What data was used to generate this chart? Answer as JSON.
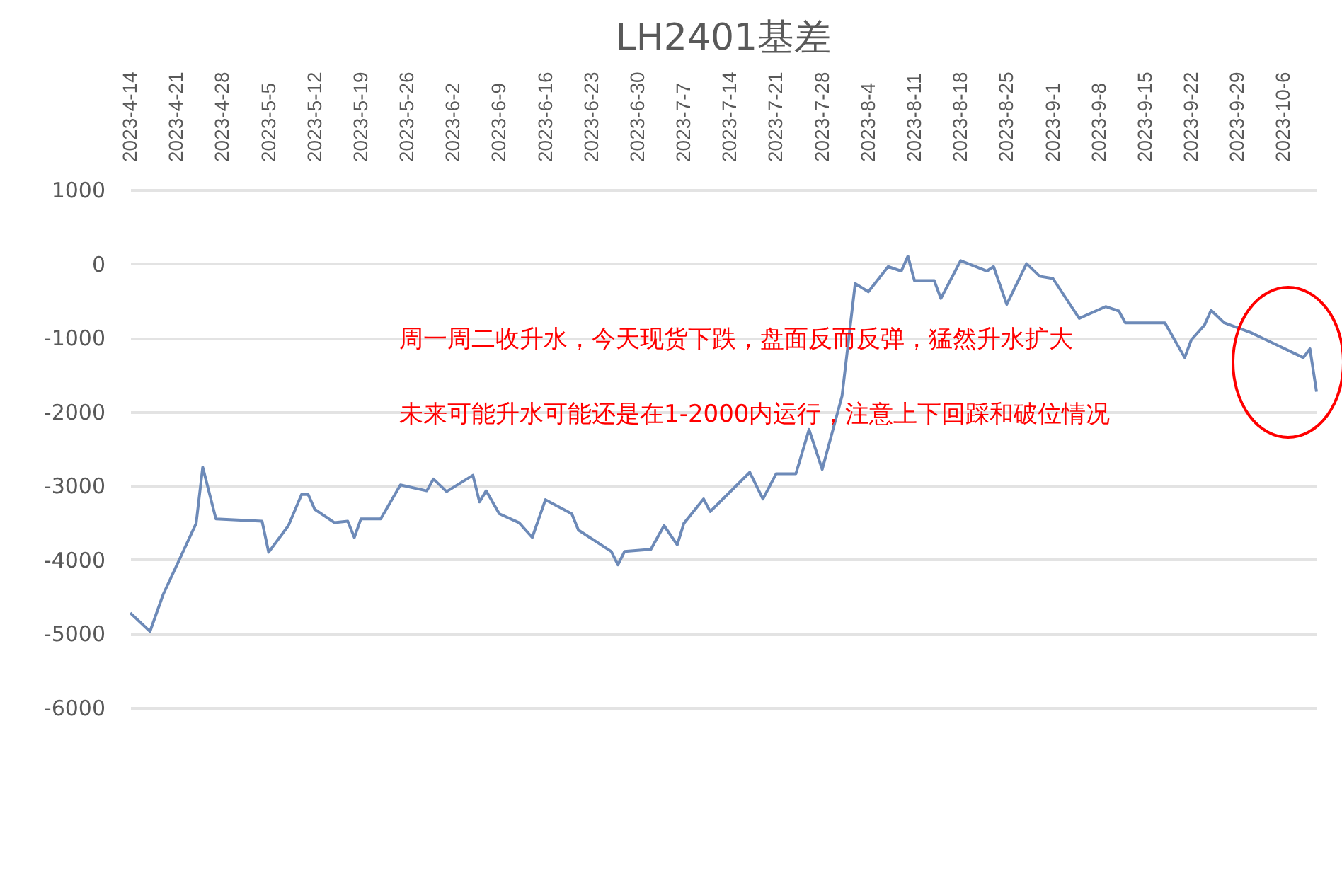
{
  "chart_data": {
    "type": "line",
    "title": "LH2401基差",
    "x": [
      "2023-04-14",
      "2023-04-17",
      "2023-04-19",
      "2023-04-24",
      "2023-04-25",
      "2023-04-27",
      "2023-05-04",
      "2023-05-05",
      "2023-05-08",
      "2023-05-10",
      "2023-05-11",
      "2023-05-12",
      "2023-05-15",
      "2023-05-17",
      "2023-05-18",
      "2023-05-19",
      "2023-05-22",
      "2023-05-25",
      "2023-05-29",
      "2023-05-30",
      "2023-06-01",
      "2023-06-05",
      "2023-06-06",
      "2023-06-07",
      "2023-06-09",
      "2023-06-12",
      "2023-06-14",
      "2023-06-16",
      "2023-06-20",
      "2023-06-21",
      "2023-06-26",
      "2023-06-27",
      "2023-06-28",
      "2023-07-02",
      "2023-07-04",
      "2023-07-06",
      "2023-07-07",
      "2023-07-10",
      "2023-07-11",
      "2023-07-17",
      "2023-07-19",
      "2023-07-21",
      "2023-07-24",
      "2023-07-26",
      "2023-07-28",
      "2023-07-31",
      "2023-08-02",
      "2023-08-04",
      "2023-08-07",
      "2023-08-09",
      "2023-08-10",
      "2023-08-11",
      "2023-08-14",
      "2023-08-15",
      "2023-08-18",
      "2023-08-22",
      "2023-08-23",
      "2023-08-25",
      "2023-08-28",
      "2023-08-30",
      "2023-09-01",
      "2023-09-05",
      "2023-09-09",
      "2023-09-11",
      "2023-09-12",
      "2023-09-15",
      "2023-09-18",
      "2023-09-21",
      "2023-09-22",
      "2023-09-24",
      "2023-09-25",
      "2023-09-27",
      "2023-10-01",
      "2023-10-09",
      "2023-10-10",
      "2023-10-11"
    ],
    "series": [
      {
        "color": "#6d8ab8",
        "values": [
          -4720,
          -4970,
          -4470,
          -3510,
          -2750,
          -3450,
          -3480,
          -3900,
          -3540,
          -3120,
          -3120,
          -3320,
          -3500,
          -3480,
          -3700,
          -3450,
          -3450,
          -2990,
          -3070,
          -2910,
          -3080,
          -2860,
          -3220,
          -3070,
          -3380,
          -3500,
          -3700,
          -3190,
          -3380,
          -3600,
          -3890,
          -4070,
          -3890,
          -3860,
          -3540,
          -3800,
          -3510,
          -3180,
          -3350,
          -2820,
          -3180,
          -2840,
          -2840,
          -2240,
          -2780,
          -1790,
          -270,
          -380,
          -40,
          -100,
          100,
          -230,
          -230,
          -470,
          40,
          -100,
          -40,
          -550,
          0,
          -170,
          -200,
          -740,
          -580,
          -640,
          -800,
          -800,
          -800,
          -1270,
          -1030,
          -830,
          -630,
          -800,
          -930,
          -1270,
          -1150,
          -1730
        ]
      }
    ],
    "xlim": [
      "2023-04-14",
      "2023-10-11"
    ],
    "xticks": [
      {
        "value": "2023-04-14",
        "label": "2023-4-14"
      },
      {
        "value": "2023-04-21",
        "label": "2023-4-21"
      },
      {
        "value": "2023-04-28",
        "label": "2023-4-28"
      },
      {
        "value": "2023-05-05",
        "label": "2023-5-5"
      },
      {
        "value": "2023-05-12",
        "label": "2023-5-12"
      },
      {
        "value": "2023-05-19",
        "label": "2023-5-19"
      },
      {
        "value": "2023-05-26",
        "label": "2023-5-26"
      },
      {
        "value": "2023-06-02",
        "label": "2023-6-2"
      },
      {
        "value": "2023-06-09",
        "label": "2023-6-9"
      },
      {
        "value": "2023-06-16",
        "label": "2023-6-16"
      },
      {
        "value": "2023-06-23",
        "label": "2023-6-23"
      },
      {
        "value": "2023-06-30",
        "label": "2023-6-30"
      },
      {
        "value": "2023-07-07",
        "label": "2023-7-7"
      },
      {
        "value": "2023-07-14",
        "label": "2023-7-14"
      },
      {
        "value": "2023-07-21",
        "label": "2023-7-21"
      },
      {
        "value": "2023-07-28",
        "label": "2023-7-28"
      },
      {
        "value": "2023-08-04",
        "label": "2023-8-4"
      },
      {
        "value": "2023-08-11",
        "label": "2023-8-11"
      },
      {
        "value": "2023-08-18",
        "label": "2023-8-18"
      },
      {
        "value": "2023-08-25",
        "label": "2023-8-25"
      },
      {
        "value": "2023-09-01",
        "label": "2023-9-1"
      },
      {
        "value": "2023-09-08",
        "label": "2023-9-8"
      },
      {
        "value": "2023-09-15",
        "label": "2023-9-15"
      },
      {
        "value": "2023-09-22",
        "label": "2023-9-22"
      },
      {
        "value": "2023-09-29",
        "label": "2023-9-29"
      },
      {
        "value": "2023-10-06",
        "label": "2023-10-6"
      }
    ],
    "ylim": [
      -6000,
      1000
    ],
    "yticks": [
      -6000,
      -5000,
      -4000,
      -3000,
      -2000,
      -1000,
      0,
      1000
    ],
    "grid": "y",
    "legend": false,
    "annotations": [
      "周一周二收升水，今天现货下跌，盘面反而反弹，猛然升水扩大",
      "未来可能升水可能还是在1-2000内运行，注意上下回踩和破位情况"
    ]
  }
}
